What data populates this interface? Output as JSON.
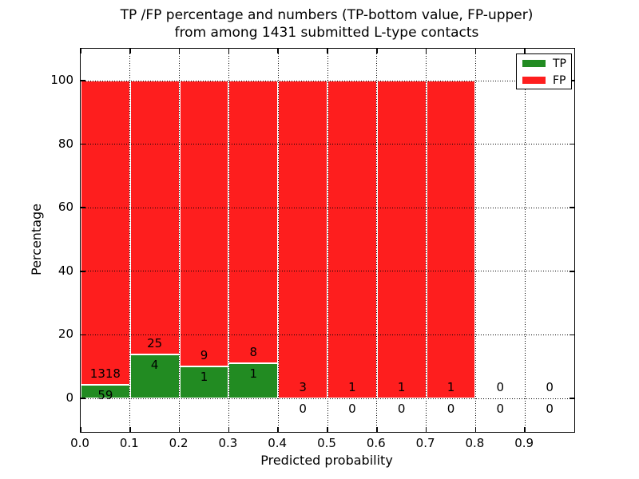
{
  "figure": {
    "title_line1": "TP /FP percentage and numbers (TP-bottom value, FP-upper)",
    "title_line2": "from among 1431 submitted L-type contacts"
  },
  "chart_data": {
    "type": "bar",
    "variant": "stacked-percentage-histogram",
    "title": "TP /FP percentage and numbers (TP-bottom value, FP-upper) from among 1431 submitted L-type contacts",
    "xlabel": "Predicted probability",
    "ylabel": "Percentage",
    "total_submitted": 1431,
    "bin_edges": [
      0.0,
      0.1,
      0.2,
      0.3,
      0.4,
      0.5,
      0.6,
      0.7,
      0.8,
      0.9,
      1.0
    ],
    "xticks": [
      "0.0",
      "0.1",
      "0.2",
      "0.3",
      "0.4",
      "0.5",
      "0.6",
      "0.7",
      "0.8",
      "0.9"
    ],
    "yticks": [
      "0",
      "20",
      "40",
      "60",
      "80",
      "100"
    ],
    "ytick_values": [
      0,
      20,
      40,
      60,
      80,
      100
    ],
    "series": [
      {
        "name": "TP",
        "color": "#228b22",
        "counts": [
          59,
          4,
          1,
          1,
          0,
          0,
          0,
          0,
          0,
          0
        ]
      },
      {
        "name": "FP",
        "color": "#fe1e1e",
        "counts": [
          1318,
          25,
          9,
          8,
          3,
          1,
          1,
          1,
          0,
          0
        ]
      }
    ],
    "tp_percent_by_bin": [
      4.28,
      13.79,
      10.0,
      11.11,
      0.0,
      0.0,
      0.0,
      0.0,
      null,
      null
    ],
    "bar_total_percent": 100,
    "bar_edge_color": "#ffffff",
    "grid": "dotted",
    "legend": {
      "position": "upper-right"
    }
  }
}
